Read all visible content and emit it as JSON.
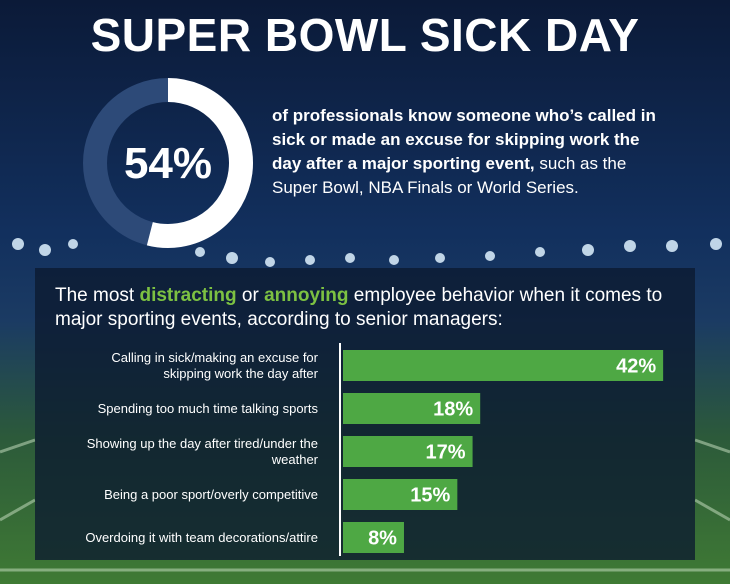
{
  "title": "SUPER BOWL SICK DAY",
  "chart_data": [
    {
      "type": "donut",
      "values": [
        54
      ],
      "value_labels": [
        "54%"
      ],
      "color": "#ffffff",
      "track_color": "#2d4a78",
      "caption_bold": "of professionals know someone who’s called in sick or made an excuse for skipping work the day after a major sporting event,",
      "caption": " such as the Super Bowl, NBA Finals or World Series."
    },
    {
      "type": "bar",
      "orientation": "horizontal",
      "title_parts": [
        "The most ",
        "distracting",
        " or ",
        "annoying",
        " employee behavior when it comes to major sporting events, according to senior managers:"
      ],
      "highlight_color": "#7cc142",
      "categories": [
        "Calling in sick/making an excuse for skipping work the day after",
        "Spending too much time talking sports",
        "Showing up the day after tired/under the weather",
        "Being a poor sport/overly competitive",
        "Overdoing it with team decorations/attire"
      ],
      "values": [
        42,
        18,
        17,
        15,
        8
      ],
      "value_labels": [
        "42%",
        "18%",
        "17%",
        "15%",
        "8%"
      ],
      "color": "#4ea844",
      "xlim": [
        0,
        45
      ]
    }
  ]
}
